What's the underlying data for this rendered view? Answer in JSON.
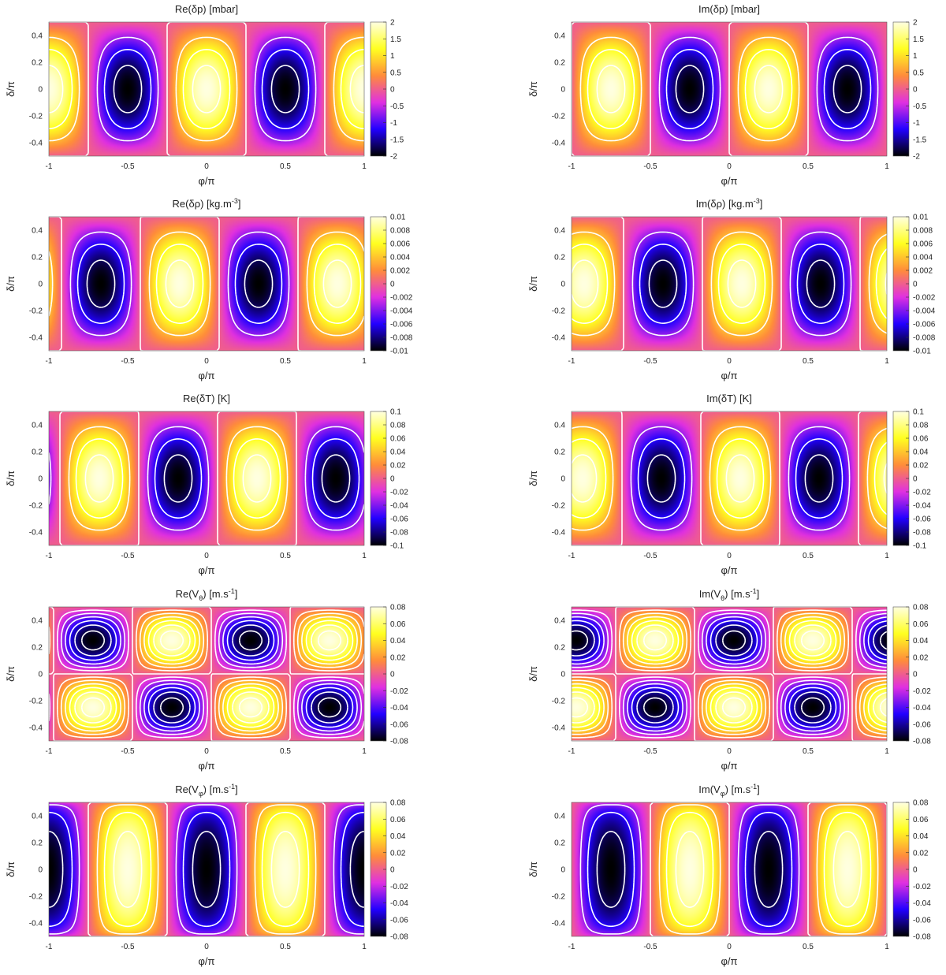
{
  "figure": {
    "colormap": {
      "stops": [
        "#000000",
        "#2200ff",
        "#e030e0",
        "#ff8c3a",
        "#ffff20",
        "#ffffe0"
      ]
    },
    "contour_color": "#ffffff"
  },
  "chart_data": [
    {
      "type": "heatmap",
      "title": "Re(δp) [mbar]",
      "xlabel": "φ/π",
      "ylabel": "δ/π",
      "xlim": [
        -1,
        1
      ],
      "ylim": [
        -0.5,
        0.5
      ],
      "xticks": [
        "-1",
        "-0.5",
        "0",
        "0.5",
        "1"
      ],
      "yticks": [
        "0.4",
        "0.2",
        "0",
        "-0.2",
        "-0.4"
      ],
      "clim": [
        -2,
        2
      ],
      "cbar_ticks": [
        "2",
        "1.5",
        "1",
        "0.5",
        "0",
        "-0.5",
        "-1",
        "-1.5",
        "-2"
      ],
      "field": {
        "kind": "pressure",
        "m": 2,
        "amplitude": 2,
        "phase": 0
      }
    },
    {
      "type": "heatmap",
      "title": "Im(δp) [mbar]",
      "xlabel": "φ/π",
      "ylabel": "δ/π",
      "xlim": [
        -1,
        1
      ],
      "ylim": [
        -0.5,
        0.5
      ],
      "xticks": [
        "-1",
        "-0.5",
        "0",
        "0.5",
        "1"
      ],
      "yticks": [
        "0.4",
        "0.2",
        "0",
        "-0.2",
        "-0.4"
      ],
      "clim": [
        -2,
        2
      ],
      "cbar_ticks": [
        "2",
        "1.5",
        "1",
        "0.5",
        "0",
        "-0.5",
        "-1",
        "-1.5",
        "-2"
      ],
      "field": {
        "kind": "pressure",
        "m": 2,
        "amplitude": 2,
        "phase": 0.25
      }
    },
    {
      "type": "heatmap",
      "title": "Re(δρ) [kg.m",
      "title_sup": "-3",
      "title_end": "]",
      "xlabel": "φ/π",
      "ylabel": "δ/π",
      "xlim": [
        -1,
        1
      ],
      "ylim": [
        -0.5,
        0.5
      ],
      "xticks": [
        "-1",
        "-0.5",
        "0",
        "0.5",
        "1"
      ],
      "yticks": [
        "0.4",
        "0.2",
        "0",
        "-0.2",
        "-0.4"
      ],
      "clim": [
        -0.01,
        0.01
      ],
      "cbar_ticks": [
        "0.01",
        "0.008",
        "0.006",
        "0.004",
        "0.002",
        "0",
        "-0.002",
        "-0.004",
        "-0.006",
        "-0.008",
        "-0.01"
      ],
      "field": {
        "kind": "pressure",
        "m": 2,
        "amplitude": 0.01,
        "phase": -0.17
      }
    },
    {
      "type": "heatmap",
      "title": "Im(δρ) [kg.m",
      "title_sup": "-3",
      "title_end": "]",
      "xlabel": "φ/π",
      "ylabel": "δ/π",
      "xlim": [
        -1,
        1
      ],
      "ylim": [
        -0.5,
        0.5
      ],
      "xticks": [
        "-1",
        "-0.5",
        "0",
        "0.5",
        "1"
      ],
      "yticks": [
        "0.4",
        "0.2",
        "0",
        "-0.2",
        "-0.4"
      ],
      "clim": [
        -0.01,
        0.01
      ],
      "cbar_ticks": [
        "0.01",
        "0.008",
        "0.006",
        "0.004",
        "0.002",
        "0",
        "-0.002",
        "-0.004",
        "-0.006",
        "-0.008",
        "-0.01"
      ],
      "field": {
        "kind": "pressure",
        "m": 2,
        "amplitude": 0.01,
        "phase": 0.08
      }
    },
    {
      "type": "heatmap",
      "title": "Re(δT) [K]",
      "xlabel": "φ/π",
      "ylabel": "δ/π",
      "xlim": [
        -1,
        1
      ],
      "ylim": [
        -0.5,
        0.5
      ],
      "xticks": [
        "-1",
        "-0.5",
        "0",
        "0.5",
        "1"
      ],
      "yticks": [
        "0.4",
        "0.2",
        "0",
        "-0.2",
        "-0.4"
      ],
      "clim": [
        -0.1,
        0.1
      ],
      "cbar_ticks": [
        "0.1",
        "0.08",
        "0.06",
        "0.04",
        "0.02",
        "0",
        "-0.02",
        "-0.04",
        "-0.06",
        "-0.08",
        "-0.1"
      ],
      "field": {
        "kind": "pressure",
        "m": 2,
        "amplitude": 0.1,
        "phase": 0.32
      }
    },
    {
      "type": "heatmap",
      "title": "Im(δT) [K]",
      "xlabel": "φ/π",
      "ylabel": "δ/π",
      "xlim": [
        -1,
        1
      ],
      "ylim": [
        -0.5,
        0.5
      ],
      "xticks": [
        "-1",
        "-0.5",
        "0",
        "0.5",
        "1"
      ],
      "yticks": [
        "0.4",
        "0.2",
        "0",
        "-0.2",
        "-0.4"
      ],
      "clim": [
        -0.1,
        0.1
      ],
      "cbar_ticks": [
        "0.1",
        "0.08",
        "0.06",
        "0.04",
        "0.02",
        "0",
        "-0.02",
        "-0.04",
        "-0.06",
        "-0.08",
        "-0.1"
      ],
      "field": {
        "kind": "pressure",
        "m": 2,
        "amplitude": 0.1,
        "phase": 0.07
      }
    },
    {
      "type": "heatmap",
      "title": "Re(V",
      "title_sub": "θ",
      "title_end": ") [m.s",
      "title_sup": "-1",
      "title_end2": "]",
      "xlabel": "φ/π",
      "ylabel": "δ/π",
      "xlim": [
        -1,
        1
      ],
      "ylim": [
        -0.5,
        0.5
      ],
      "xticks": [
        "-1",
        "-0.5",
        "0",
        "0.5",
        "1"
      ],
      "yticks": [
        "0.4",
        "0.2",
        "0",
        "-0.2",
        "-0.4"
      ],
      "clim": [
        -0.08,
        0.08
      ],
      "cbar_ticks": [
        "0.08",
        "0.06",
        "0.04",
        "0.02",
        "0",
        "-0.02",
        "-0.04",
        "-0.06",
        "-0.08"
      ],
      "field": {
        "kind": "vtheta",
        "m": 2,
        "amplitude": 0.08,
        "phase": 0.28
      }
    },
    {
      "type": "heatmap",
      "title": "Im(V",
      "title_sub": "θ",
      "title_end": ") [m.s",
      "title_sup": "-1",
      "title_end2": "]",
      "xlabel": "φ/π",
      "ylabel": "δ/π",
      "xlim": [
        -1,
        1
      ],
      "ylim": [
        -0.5,
        0.5
      ],
      "xticks": [
        "-1",
        "-0.5",
        "0",
        "0.5",
        "1"
      ],
      "yticks": [
        "0.4",
        "0.2",
        "0",
        "-0.2",
        "-0.4"
      ],
      "clim": [
        -0.08,
        0.08
      ],
      "cbar_ticks": [
        "0.08",
        "0.06",
        "0.04",
        "0.02",
        "0",
        "-0.02",
        "-0.04",
        "-0.06",
        "-0.08"
      ],
      "field": {
        "kind": "vtheta",
        "m": 2,
        "amplitude": 0.08,
        "phase": 0.03
      }
    },
    {
      "type": "heatmap",
      "title": "Re(V",
      "title_sub": "φ",
      "title_end": ") [m.s",
      "title_sup": "-1",
      "title_end2": "]",
      "xlabel": "φ/π",
      "ylabel": "δ/π",
      "xlim": [
        -1,
        1
      ],
      "ylim": [
        -0.5,
        0.5
      ],
      "xticks": [
        "-1",
        "-0.5",
        "0",
        "0.5",
        "1"
      ],
      "yticks": [
        "0.4",
        "0.2",
        "0",
        "-0.2",
        "-0.4"
      ],
      "clim": [
        -0.08,
        0.08
      ],
      "cbar_ticks": [
        "0.08",
        "0.06",
        "0.04",
        "0.02",
        "0",
        "-0.02",
        "-0.04",
        "-0.06",
        "-0.08"
      ],
      "field": {
        "kind": "vphi",
        "m": 2,
        "amplitude": 0.08,
        "phase": 0
      }
    },
    {
      "type": "heatmap",
      "title": "Im(V",
      "title_sub": "φ",
      "title_end": ") [m.s",
      "title_sup": "-1",
      "title_end2": "]",
      "xlabel": "φ/π",
      "ylabel": "δ/π",
      "xlim": [
        -1,
        1
      ],
      "ylim": [
        -0.5,
        0.5
      ],
      "xticks": [
        "-1",
        "-0.5",
        "0",
        "0.5",
        "1"
      ],
      "yticks": [
        "0.4",
        "0.2",
        "0",
        "-0.2",
        "-0.4"
      ],
      "clim": [
        -0.08,
        0.08
      ],
      "cbar_ticks": [
        "0.08",
        "0.06",
        "0.04",
        "0.02",
        "0",
        "-0.02",
        "-0.04",
        "-0.06",
        "-0.08"
      ],
      "field": {
        "kind": "vphi",
        "m": 2,
        "amplitude": 0.08,
        "phase": 0.25
      }
    }
  ]
}
